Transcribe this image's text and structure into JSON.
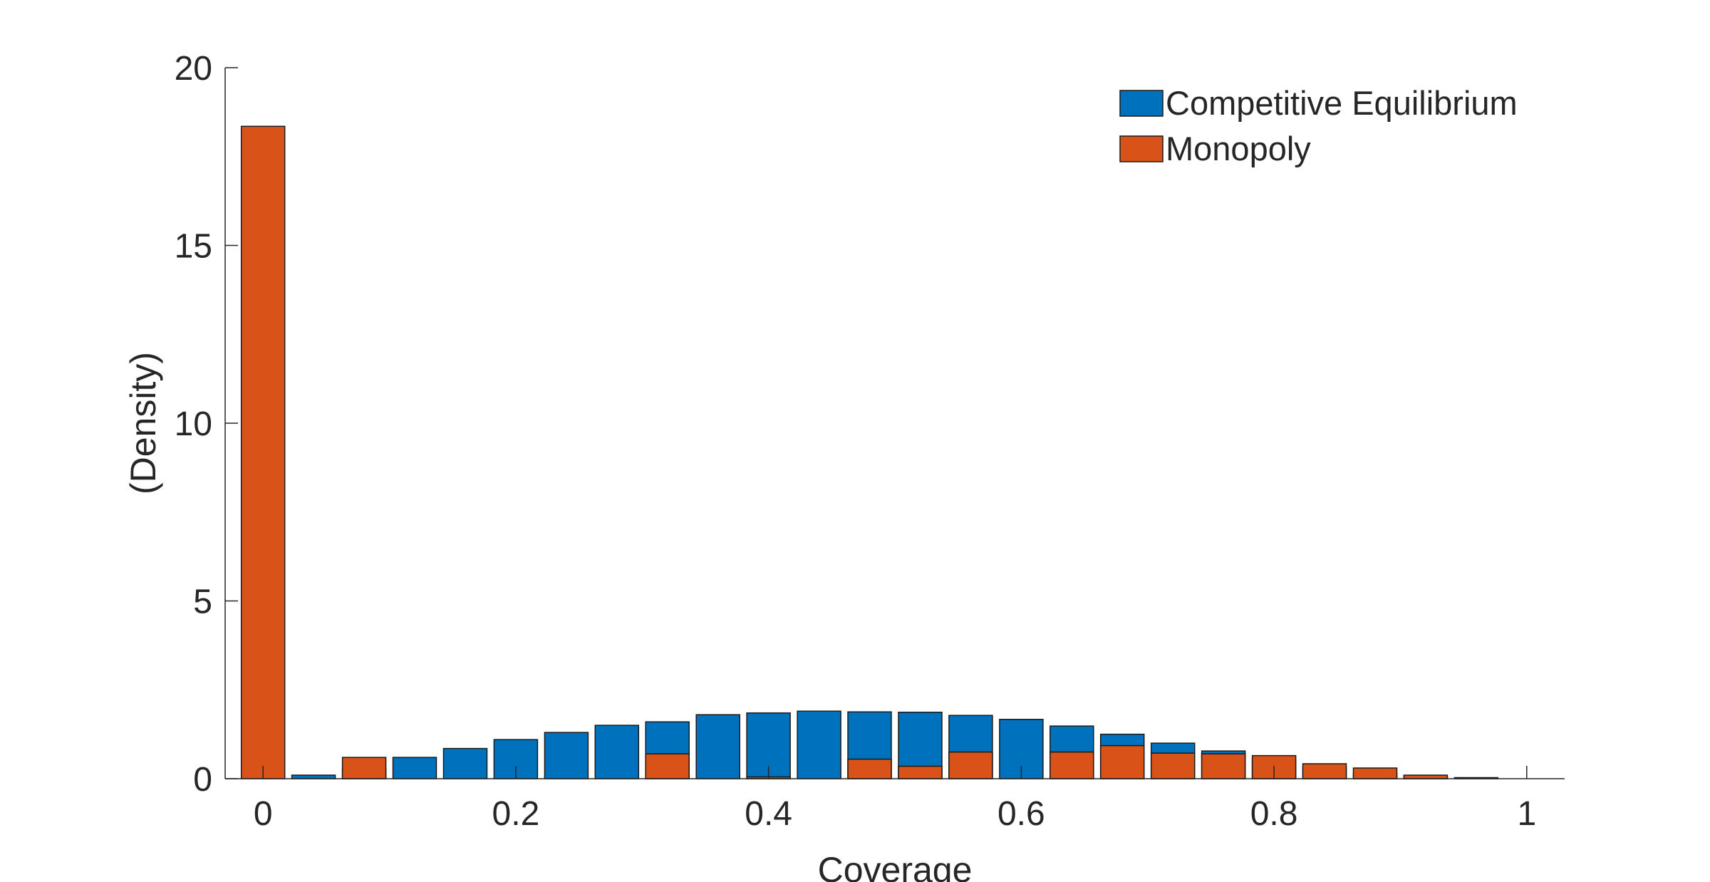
{
  "chart_data": {
    "type": "bar",
    "xlabel": "Coverage",
    "ylabel": "(Density)",
    "xlim": [
      -0.03,
      1.03
    ],
    "ylim": [
      0,
      20
    ],
    "xticks": [
      0,
      0.2,
      0.4,
      0.6,
      0.8,
      1
    ],
    "xtick_labels": [
      "0",
      "0.2",
      "0.4",
      "0.6",
      "0.8",
      "1"
    ],
    "yticks": [
      0,
      5,
      10,
      15,
      20
    ],
    "ytick_labels": [
      "0",
      "5",
      "10",
      "15",
      "20"
    ],
    "legend_position": "top-right",
    "grid": false,
    "series": [
      {
        "name": "Competitive Equilibrium",
        "color": "#0072BD",
        "bin_width": 0.04,
        "x": [
          0.04,
          0.08,
          0.12,
          0.16,
          0.2,
          0.24,
          0.28,
          0.32,
          0.36,
          0.4,
          0.44,
          0.48,
          0.52,
          0.56,
          0.6,
          0.64,
          0.68,
          0.72,
          0.76,
          0.8,
          0.84,
          0.88,
          0.92,
          0.96
        ],
        "values": [
          0.1,
          0.3,
          0.6,
          0.85,
          1.1,
          1.3,
          1.5,
          1.6,
          1.8,
          1.85,
          1.9,
          1.88,
          1.87,
          1.78,
          1.67,
          1.48,
          1.25,
          1.0,
          0.78,
          0.52,
          0.33,
          0.15,
          0.07,
          0.03
        ]
      },
      {
        "name": "Monopoly",
        "color": "#D95319",
        "bin_width": 0.04,
        "x": [
          0.0,
          0.04,
          0.08,
          0.12,
          0.16,
          0.2,
          0.24,
          0.28,
          0.32,
          0.36,
          0.4,
          0.44,
          0.48,
          0.52,
          0.56,
          0.6,
          0.64,
          0.68,
          0.72,
          0.76,
          0.8,
          0.84,
          0.88,
          0.92,
          0.96
        ],
        "values": [
          18.35,
          0.0,
          0.6,
          0.0,
          0.0,
          0.0,
          0.0,
          0.0,
          0.7,
          0.0,
          0.05,
          0.0,
          0.55,
          0.35,
          0.75,
          0.0,
          0.75,
          0.93,
          0.72,
          0.7,
          0.65,
          0.42,
          0.3,
          0.1,
          0.0
        ]
      }
    ]
  }
}
